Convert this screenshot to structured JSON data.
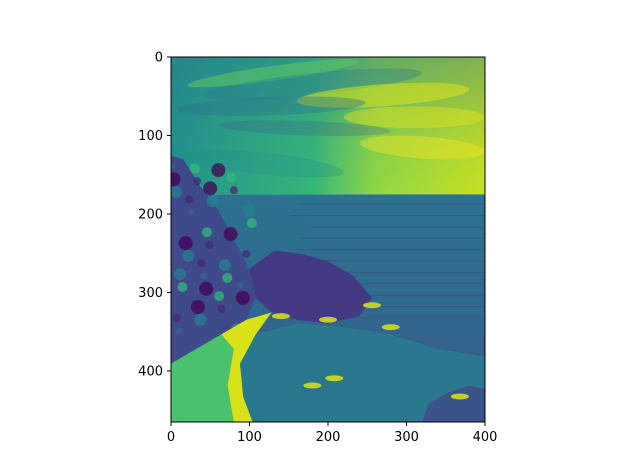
{
  "chart_data": {
    "type": "heatmap",
    "title": "",
    "xlabel": "",
    "ylabel": "",
    "colormap": "viridis",
    "colormap_stops": [
      "#440154",
      "#3b528b",
      "#21918c",
      "#5ec962",
      "#fde725"
    ],
    "xlim": [
      0,
      400
    ],
    "ylim": [
      465,
      0
    ],
    "x_ticks": [
      0,
      100,
      200,
      300,
      400
    ],
    "y_ticks": [
      0,
      100,
      200,
      300,
      400
    ],
    "horizon_row": 175,
    "image_content": "grayscale photograph of a coastline (sky, horizon, sea, cliffs with trees, beach) rendered with the viridis colormap",
    "grid": false,
    "legend": "none"
  }
}
